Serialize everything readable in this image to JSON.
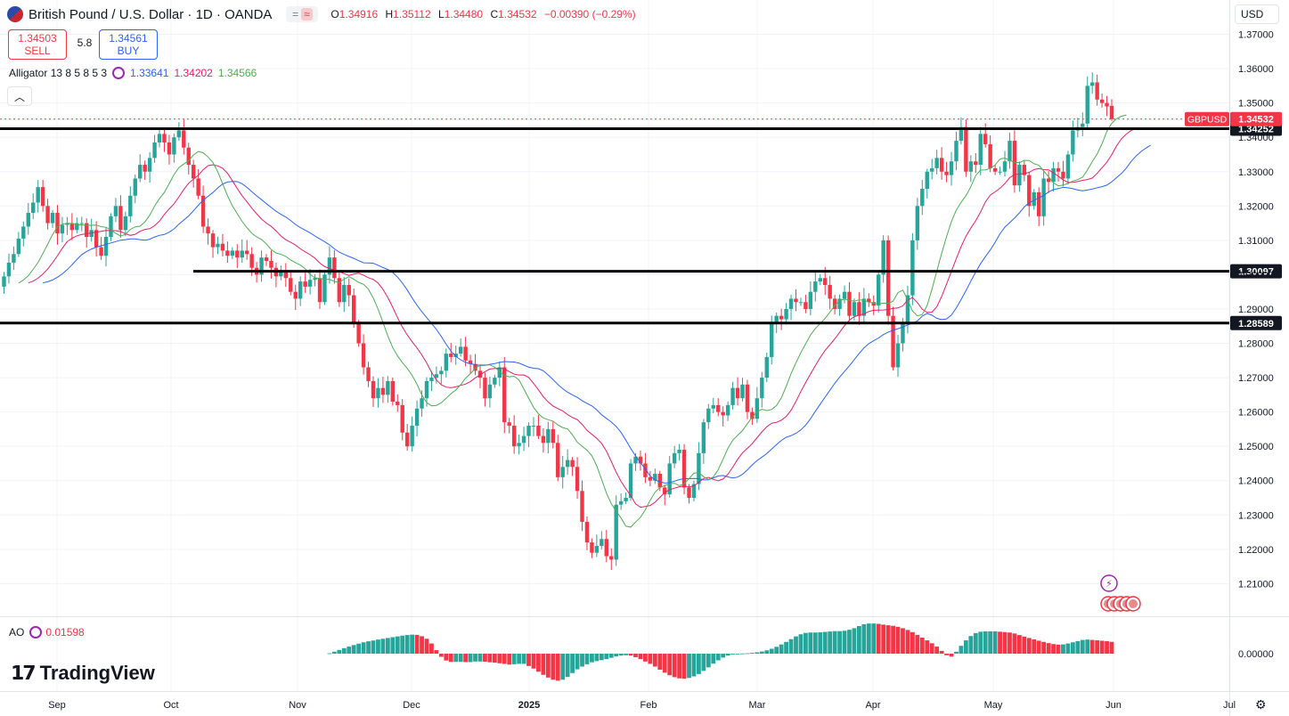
{
  "header": {
    "symbol_title": "British Pound / U.S. Dollar · 1D · OANDA",
    "ohlc": [
      {
        "k": "O",
        "v": "1.34916"
      },
      {
        "k": "H",
        "v": "1.35112"
      },
      {
        "k": "L",
        "v": "1.34480"
      },
      {
        "k": "C",
        "v": "1.34532"
      }
    ],
    "change": "−0.00390 (−0.29%)"
  },
  "trade": {
    "sell_price": "1.34503",
    "sell_label": "SELL",
    "spread": "5.8",
    "buy_price": "1.34561",
    "buy_label": "BUY"
  },
  "indicator": {
    "name": "Alligator 13 8 5 8 5 3",
    "values": [
      "1.33641",
      "1.34202",
      "1.34566"
    ],
    "colors": [
      "#2962ff",
      "#e91e63",
      "#4caf50"
    ]
  },
  "currency": "USD",
  "price_axis": {
    "ticks": [
      "1.37000",
      "1.36000",
      "1.35000",
      "1.34000",
      "1.33000",
      "1.32000",
      "1.31000",
      "1.30000",
      "1.29000",
      "1.28000",
      "1.27000",
      "1.26000",
      "1.25000",
      "1.24000",
      "1.23000",
      "1.22000",
      "1.21000"
    ],
    "symbol_badge": "GBPUSD",
    "last_price": "1.34532",
    "levels": [
      "1.34252",
      "1.30097",
      "1.28589"
    ]
  },
  "time_axis": {
    "labels": [
      "Sep",
      "Oct",
      "Nov",
      "Dec",
      "2025",
      "Feb",
      "Mar",
      "Apr",
      "May",
      "Jun",
      "Jul"
    ]
  },
  "ao": {
    "name": "AO",
    "value": "0.01598",
    "zero_label": "0.00000"
  },
  "logo": {
    "text": "TradingView"
  },
  "colors": {
    "up": "#26a69a",
    "down": "#f23645",
    "level": "#000000",
    "badge": "#f23645"
  },
  "chart_data": {
    "type": "candlestick",
    "symbol": "GBPUSD",
    "timeframe": "1D",
    "ylim": [
      1.2005,
      1.38
    ],
    "close": [
      1.2995,
      1.3035,
      1.306,
      1.3105,
      1.314,
      1.318,
      1.321,
      1.3255,
      1.32,
      1.315,
      1.318,
      1.312,
      1.3145,
      1.315,
      1.313,
      1.315,
      1.315,
      1.311,
      1.313,
      1.308,
      1.3055,
      1.311,
      1.317,
      1.32,
      1.313,
      1.317,
      1.323,
      1.328,
      1.332,
      1.33,
      1.334,
      1.3385,
      1.341,
      1.3385,
      1.335,
      1.34,
      1.342,
      1.337,
      1.332,
      1.328,
      1.323,
      1.314,
      1.312,
      1.308,
      1.309,
      1.307,
      1.3055,
      1.307,
      1.305,
      1.307,
      1.306,
      1.302,
      1.3,
      1.305,
      1.304,
      1.302,
      1.2995,
      1.301,
      1.299,
      1.295,
      1.293,
      1.298,
      1.2965,
      1.2985,
      1.299,
      1.292,
      1.3,
      1.305,
      1.299,
      1.292,
      1.297,
      1.294,
      1.286,
      1.28,
      1.273,
      1.269,
      1.264,
      1.267,
      1.265,
      1.269,
      1.263,
      1.262,
      1.254,
      1.25,
      1.256,
      1.261,
      1.264,
      1.269,
      1.27,
      1.271,
      1.272,
      1.277,
      1.276,
      1.277,
      1.279,
      1.275,
      1.274,
      1.272,
      1.27,
      1.264,
      1.268,
      1.27,
      1.273,
      1.257,
      1.256,
      1.25,
      1.251,
      1.253,
      1.256,
      1.256,
      1.253,
      1.251,
      1.255,
      1.251,
      1.241,
      1.244,
      1.246,
      1.244,
      1.237,
      1.228,
      1.222,
      1.219,
      1.221,
      1.223,
      1.218,
      1.217,
      1.233,
      1.234,
      1.235,
      1.245,
      1.247,
      1.245,
      1.241,
      1.24,
      1.242,
      1.238,
      1.236,
      1.245,
      1.248,
      1.249,
      1.238,
      1.235,
      1.239,
      1.248,
      1.257,
      1.261,
      1.262,
      1.26,
      1.259,
      1.262,
      1.267,
      1.264,
      1.268,
      1.26,
      1.258,
      1.264,
      1.27,
      1.276,
      1.286,
      1.288,
      1.287,
      1.29,
      1.293,
      1.292,
      1.292,
      1.29,
      1.295,
      1.298,
      1.299,
      1.297,
      1.293,
      1.29,
      1.293,
      1.295,
      1.288,
      1.292,
      1.288,
      1.293,
      1.292,
      1.291,
      1.3,
      1.31,
      1.288,
      1.273,
      1.28,
      1.286,
      1.294,
      1.31,
      1.32,
      1.325,
      1.33,
      1.331,
      1.334,
      1.33,
      1.329,
      1.333,
      1.339,
      1.343,
      1.33,
      1.333,
      1.332,
      1.341,
      1.338,
      1.331,
      1.33,
      1.33,
      1.333,
      1.339,
      1.326,
      1.332,
      1.329,
      1.32,
      1.324,
      1.317,
      1.328,
      1.327,
      1.331,
      1.33,
      1.328,
      1.335,
      1.342,
      1.343,
      1.344,
      1.355,
      1.356,
      1.351,
      1.35,
      1.349,
      1.3453
    ],
    "levels": [
      1.34252,
      1.30097,
      1.28589
    ],
    "last_price": 1.34532,
    "ao_values": [
      0.0002,
      0.001,
      0.0019,
      0.0028,
      0.0036,
      0.0044,
      0.0051,
      0.0058,
      0.0063,
      0.0067,
      0.0072,
      0.0076,
      0.008,
      0.0084,
      0.0088,
      0.0092,
      0.0095,
      0.0097,
      0.0096,
      0.0089,
      0.0076,
      0.0052,
      0.0018,
      -0.0016,
      -0.0035,
      -0.0042,
      -0.0042,
      -0.0042,
      -0.0043,
      -0.0043,
      -0.004,
      -0.004,
      -0.0041,
      -0.0044,
      -0.0046,
      -0.0049,
      -0.0052,
      -0.0056,
      -0.0054,
      -0.0052,
      -0.0052,
      -0.0063,
      -0.0076,
      -0.0092,
      -0.0108,
      -0.0122,
      -0.0133,
      -0.0138,
      -0.0133,
      -0.0119,
      -0.0099,
      -0.008,
      -0.0066,
      -0.0054,
      -0.0044,
      -0.0038,
      -0.0033,
      -0.0028,
      -0.0021,
      -0.0014,
      -0.001,
      -0.0008,
      -0.001,
      -0.0018,
      -0.0028,
      -0.004,
      -0.0052,
      -0.0066,
      -0.0082,
      -0.0097,
      -0.011,
      -0.012,
      -0.0126,
      -0.0128,
      -0.0124,
      -0.0116,
      -0.0104,
      -0.0088,
      -0.007,
      -0.0051,
      -0.0034,
      -0.002,
      -0.001,
      -0.0004,
      -0.0001,
      0.0001,
      0.0002,
      0.0004,
      0.0007,
      0.0011,
      0.0017,
      0.0025,
      0.0035,
      0.0047,
      0.006,
      0.0074,
      0.0088,
      0.0099,
      0.0106,
      0.0108,
      0.0108,
      0.0109,
      0.0111,
      0.0113,
      0.0115,
      0.0115,
      0.0117,
      0.0122,
      0.013,
      0.0141,
      0.015,
      0.0154,
      0.0154,
      0.0152,
      0.0148,
      0.0145,
      0.0142,
      0.0137,
      0.013,
      0.0121,
      0.011,
      0.0096,
      0.0082,
      0.0068,
      0.0053,
      0.0036,
      0.0014,
      -0.0008,
      -0.0015,
      0.001,
      0.004,
      0.0068,
      0.009,
      0.0105,
      0.0112,
      0.0114,
      0.0114,
      0.0114,
      0.0112,
      0.011,
      0.0108,
      0.0103,
      0.0095,
      0.0087,
      0.008,
      0.0073,
      0.0066,
      0.006,
      0.0054,
      0.0049,
      0.0046,
      0.0047,
      0.0052,
      0.0058,
      0.0064,
      0.007,
      0.0072,
      0.007,
      0.0068,
      0.0066,
      0.0064,
      0.006
    ]
  }
}
